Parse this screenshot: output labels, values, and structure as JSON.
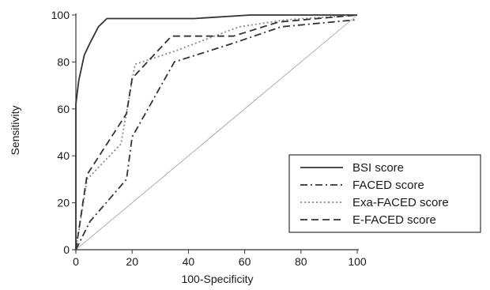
{
  "chart_data": {
    "type": "line",
    "title": "",
    "xlabel": "100-Specificity",
    "ylabel": "Sensitivity",
    "xlim": [
      0,
      100
    ],
    "ylim": [
      0,
      100
    ],
    "xticks": [
      0,
      20,
      40,
      60,
      80,
      100
    ],
    "yticks": [
      0,
      20,
      40,
      60,
      80,
      100
    ],
    "grid": false,
    "legend_position": "bottom-right",
    "reference_line": {
      "x": [
        0,
        100
      ],
      "y": [
        0,
        100
      ]
    },
    "series": [
      {
        "name": "BSI score",
        "style": "solid",
        "color": "#333333",
        "x": [
          0,
          0,
          1,
          3,
          5,
          8,
          11,
          25,
          42,
          62,
          80,
          100
        ],
        "y": [
          0,
          62,
          72,
          83,
          88,
          95,
          98.5,
          98.5,
          98.5,
          100,
          100,
          100
        ]
      },
      {
        "name": "FACED score",
        "style": "dashdot",
        "color": "#333333",
        "x": [
          0,
          5,
          18,
          20,
          35,
          56,
          73,
          100
        ],
        "y": [
          0,
          12,
          30,
          48,
          80,
          88,
          95,
          98
        ]
      },
      {
        "name": "Exa-FACED score",
        "style": "dotted",
        "color": "#8a8a8a",
        "x": [
          0,
          4,
          16,
          21,
          36,
          58,
          75,
          100
        ],
        "y": [
          0,
          30,
          45,
          79,
          85,
          95,
          98,
          100
        ]
      },
      {
        "name": "E-FACED score",
        "style": "dashed",
        "color": "#333333",
        "x": [
          0,
          4,
          18,
          20,
          34,
          56,
          72,
          100
        ],
        "y": [
          0,
          32,
          58,
          73,
          91,
          91,
          97,
          100
        ]
      }
    ]
  }
}
